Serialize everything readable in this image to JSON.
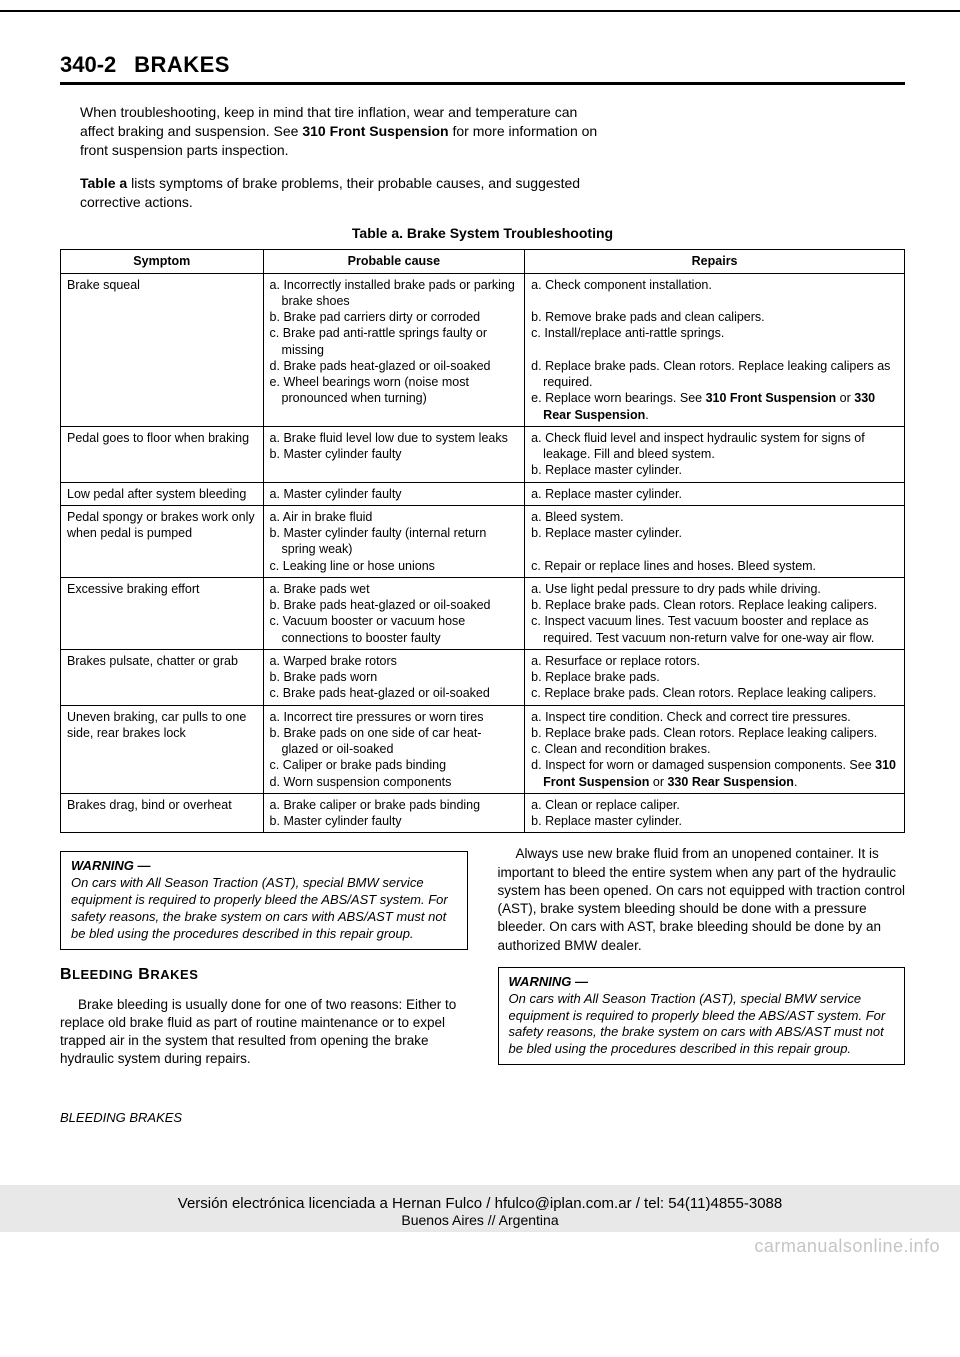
{
  "header": {
    "page_num": "340-2",
    "title": "BRAKES"
  },
  "intro": {
    "p1a": "When troubleshooting, keep in mind that tire inflation, wear and temperature can affect braking and suspension. See ",
    "p1b": "310 Front Suspension",
    "p1c": " for more information on front suspension parts inspection.",
    "p2a": "Table a",
    "p2b": " lists symptoms of brake problems, their probable causes, and suggested corrective actions."
  },
  "table": {
    "caption": "Table a. Brake System Troubleshooting",
    "headers": [
      "Symptom",
      "Probable cause",
      "Repairs"
    ],
    "rows": [
      {
        "symptom": "Brake squeal",
        "causes": [
          "a. Incorrectly installed brake pads or parking brake shoes",
          "b. Brake pad carriers dirty or corroded",
          "c. Brake pad anti-rattle springs faulty or missing",
          "d. Brake pads heat-glazed or oil-soaked",
          "e. Wheel bearings worn (noise most pronounced when turning)"
        ],
        "repairs": [
          "a. Check component installation.",
          "",
          "b. Remove brake pads and clean calipers.",
          "c. Install/replace anti-rattle springs.",
          "",
          "d. Replace brake pads. Clean rotors. Replace leaking calipers as required.",
          "e. Replace worn bearings. See 310 Front Suspension or 330 Rear Suspension."
        ],
        "repair_bold_suffix": [
          "",
          "",
          "",
          "",
          "",
          "",
          "310 Front Suspension",
          "330 Rear Suspension"
        ]
      },
      {
        "symptom": "Pedal goes to floor when braking",
        "causes": [
          "a. Brake fluid level low due to system leaks",
          "b. Master cylinder faulty"
        ],
        "repairs": [
          "a. Check fluid level and inspect hydraulic system for signs of leakage. Fill and bleed system.",
          "b. Replace master cylinder."
        ]
      },
      {
        "symptom": "Low pedal after system bleeding",
        "causes": [
          "a. Master cylinder faulty"
        ],
        "repairs": [
          "a. Replace master cylinder."
        ]
      },
      {
        "symptom": "Pedal spongy or brakes work only when pedal is pumped",
        "causes": [
          "a. Air in brake fluid",
          "b. Master cylinder faulty (internal return spring weak)",
          "c. Leaking line or hose unions"
        ],
        "repairs": [
          "a. Bleed system.",
          "b. Replace master cylinder.",
          "",
          "c. Repair or replace lines and hoses. Bleed system."
        ]
      },
      {
        "symptom": "Excessive braking effort",
        "causes": [
          "a. Brake pads wet",
          "b. Brake pads heat-glazed or oil-soaked",
          "c. Vacuum booster or vacuum hose connections to booster faulty"
        ],
        "repairs": [
          "a. Use light pedal pressure to dry pads while driving.",
          "b. Replace brake pads. Clean rotors. Replace leaking calipers.",
          "c. Inspect vacuum lines. Test vacuum booster and replace as required. Test vacuum non-return valve for one-way air flow."
        ]
      },
      {
        "symptom": "Brakes pulsate, chatter or grab",
        "causes": [
          "a. Warped brake rotors",
          "b. Brake pads worn",
          "c. Brake pads heat-glazed or oil-soaked"
        ],
        "repairs": [
          "a. Resurface or replace rotors.",
          "b. Replace brake pads.",
          "c. Replace brake pads. Clean rotors. Replace leaking calipers."
        ]
      },
      {
        "symptom": "Uneven braking, car pulls to one side, rear brakes lock",
        "causes": [
          "a. Incorrect tire pressures or worn tires",
          "b. Brake pads on one side of car heat-glazed or oil-soaked",
          "c. Caliper or brake pads binding",
          "d. Worn suspension components"
        ],
        "repairs": [
          "a. Inspect tire condition. Check and correct tire pressures.",
          "b. Replace brake pads. Clean rotors. Replace leaking calipers.",
          "c. Clean and recondition brakes.",
          "d. Inspect for worn or damaged suspension components. See 310 Front Suspension or 330 Rear Suspension."
        ],
        "repair_bold_suffix": [
          "",
          "",
          "",
          "310 Front Suspension",
          "330 Rear Suspension"
        ]
      },
      {
        "symptom": "Brakes drag, bind or overheat",
        "causes": [
          "a. Brake caliper or brake pads binding",
          "b. Master cylinder faulty"
        ],
        "repairs": [
          "a. Clean or replace caliper.",
          "b. Replace master cylinder."
        ]
      }
    ]
  },
  "left_col": {
    "warning_title": "WARNING —",
    "warning_body": "On cars with All Season Traction (AST), special BMW service equipment is required to properly bleed the ABS/AST system. For safety reasons, the brake system on cars with ABS/AST must not be bled using the procedures described in this repair group.",
    "section_head": "BLEEDING BRAKES",
    "para": "Brake bleeding is usually done for one of two reasons: Either to replace old brake fluid as part of routine maintenance or to expel trapped air in the system that resulted from opening the brake hydraulic system during repairs."
  },
  "right_col": {
    "para": "Always use new brake fluid from an unopened container. It is important to bleed the entire system when any part of the hydraulic system has been opened. On cars not equipped with traction control (AST), brake system bleeding should be done with a pressure bleeder. On cars with AST, brake bleeding should be done by an authorized BMW dealer.",
    "warning_title": "WARNING —",
    "warning_body": "On cars with All Season Traction (AST), special BMW service equipment is required to properly bleed the ABS/AST system. For safety reasons, the brake system on cars with ABS/AST must not be bled using the procedures described in this repair group."
  },
  "footer_section": "BLEEDING BRAKES",
  "license": {
    "line1": "Versión electrónica licenciada a Hernan Fulco / hfulco@iplan.com.ar / tel: 54(11)4855-3088",
    "line2": "Buenos Aires // Argentina"
  },
  "watermark": "carmanualsonline.info"
}
